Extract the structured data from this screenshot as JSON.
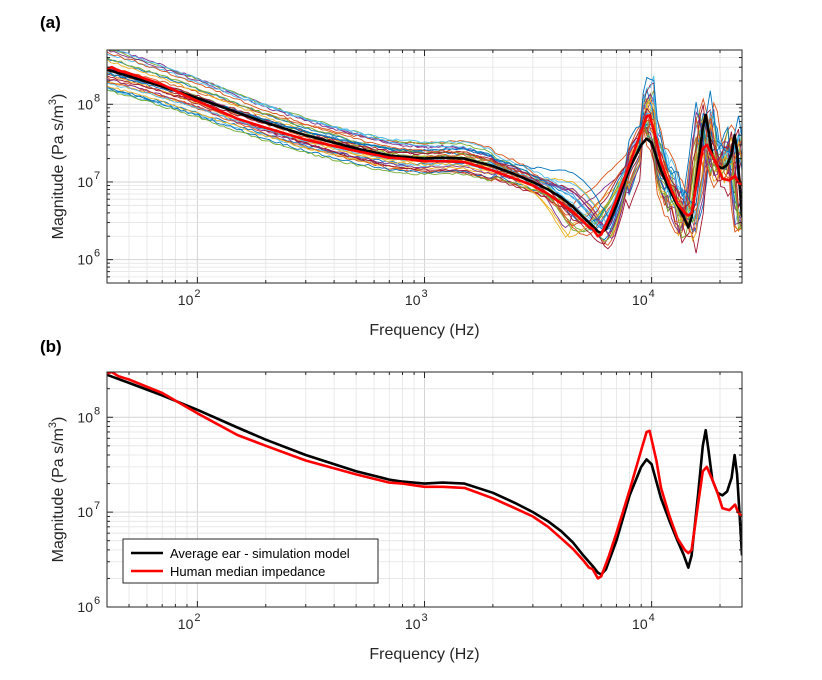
{
  "chart_data": [
    {
      "panel": "(a)",
      "type": "line",
      "xscale": "log",
      "yscale": "log",
      "xlabel": "Frequency (Hz)",
      "ylabel": "Magnitude (Pa s/m3)",
      "ylabel_base": "Magnitude (Pa s/m",
      "ylabel_sup": "3",
      "ylabel_tail": ")",
      "xlim": [
        40,
        25000
      ],
      "ylim": [
        500000,
        500000000
      ],
      "x_ticks": [
        {
          "value": 100,
          "base": "10",
          "exp": "2"
        },
        {
          "value": 1000,
          "base": "10",
          "exp": "3"
        },
        {
          "value": 10000,
          "base": "10",
          "exp": "4"
        }
      ],
      "y_ticks": [
        {
          "value": 1000000,
          "base": "10",
          "exp": "6"
        },
        {
          "value": 10000000,
          "base": "10",
          "exp": "7"
        },
        {
          "value": 100000000,
          "base": "10",
          "exp": "8"
        }
      ],
      "grid": true,
      "individual_ears": {
        "count": 30,
        "colors": [
          "#0072BD",
          "#D95319",
          "#EDB120",
          "#7E2F8E",
          "#77AC30",
          "#4DBEEE",
          "#A2142F"
        ]
      },
      "series": [
        {
          "name": "Average ear - simulation model",
          "color": "#000000",
          "x": [
            40,
            50,
            70,
            100,
            150,
            200,
            300,
            500,
            700,
            800,
            1000,
            1200,
            1500,
            2000,
            2500,
            3000,
            3500,
            4000,
            4500,
            5000,
            5500,
            5800,
            6000,
            6300,
            7000,
            8000,
            9000,
            9500,
            10000,
            10500,
            11000,
            12000,
            13000,
            13800,
            14500,
            15000,
            16000,
            16800,
            17300,
            17800,
            18500,
            19500,
            20500,
            21500,
            22500,
            23200,
            23800,
            24500,
            25000
          ],
          "values": [
            280000000,
            230000000,
            170000000,
            120000000,
            78000000,
            58000000,
            40000000,
            27000000,
            22000000,
            21000000,
            20000000,
            20500000,
            20000000,
            16000000,
            12500000,
            10000000,
            8000000,
            6300000,
            4800000,
            3500000,
            2700000,
            2300000,
            2200000,
            2500000,
            5000000,
            15000000,
            30000000,
            36000000,
            32000000,
            21000000,
            14000000,
            8000000,
            5000000,
            3600000,
            2600000,
            3500000,
            15000000,
            50000000,
            73000000,
            45000000,
            22000000,
            16000000,
            15000000,
            16500000,
            23000000,
            40000000,
            25000000,
            8000000,
            3500000
          ]
        },
        {
          "name": "Human median impedance",
          "color": "#FF0000",
          "x": [
            40,
            42,
            45,
            50,
            70,
            100,
            150,
            200,
            300,
            500,
            700,
            800,
            1000,
            1200,
            1500,
            2000,
            2500,
            3000,
            3500,
            4000,
            4500,
            5000,
            5300,
            5500,
            5800,
            6000,
            6500,
            7000,
            8000,
            9000,
            9500,
            9800,
            10500,
            11000,
            12000,
            13000,
            14000,
            14500,
            15000,
            16000,
            16800,
            17500,
            18500,
            19500,
            20500,
            22000,
            23300,
            24000,
            25000
          ],
          "values": [
            290000000,
            300000000,
            270000000,
            250000000,
            180000000,
            110000000,
            65000000,
            50000000,
            35000000,
            25000000,
            20500000,
            20000000,
            18500000,
            18500000,
            18000000,
            14000000,
            11000000,
            9000000,
            7000000,
            5300000,
            4100000,
            3100000,
            2600000,
            2500000,
            2000000,
            2100000,
            3500000,
            6000000,
            17000000,
            45000000,
            70000000,
            72000000,
            35000000,
            18000000,
            9000000,
            5300000,
            4000000,
            3700000,
            4000000,
            12000000,
            27000000,
            30000000,
            22000000,
            16000000,
            11000000,
            10500000,
            12000000,
            10000000,
            9000000
          ]
        }
      ]
    },
    {
      "panel": "(b)",
      "type": "line",
      "xscale": "log",
      "yscale": "log",
      "xlabel": "Frequency (Hz)",
      "ylabel": "Magnitude (Pa s/m3)",
      "ylabel_base": "Magnitude (Pa s/m",
      "ylabel_sup": "3",
      "ylabel_tail": ")",
      "xlim": [
        40,
        25000
      ],
      "ylim": [
        1000000,
        300000000
      ],
      "x_ticks": [
        {
          "value": 100,
          "base": "10",
          "exp": "2"
        },
        {
          "value": 1000,
          "base": "10",
          "exp": "3"
        },
        {
          "value": 10000,
          "base": "10",
          "exp": "4"
        }
      ],
      "y_ticks": [
        {
          "value": 1000000,
          "base": "10",
          "exp": "6"
        },
        {
          "value": 10000000,
          "base": "10",
          "exp": "7"
        },
        {
          "value": 100000000,
          "base": "10",
          "exp": "8"
        }
      ],
      "grid": true,
      "legend": {
        "position": "bottom-left",
        "entries": [
          {
            "label": "Average ear - simulation model",
            "color": "#000000"
          },
          {
            "label": "Human median impedance",
            "color": "#FF0000"
          }
        ]
      },
      "series": [
        {
          "name": "Average ear - simulation model",
          "color": "#000000",
          "x": [
            40,
            50,
            70,
            100,
            150,
            200,
            300,
            500,
            700,
            800,
            1000,
            1200,
            1500,
            2000,
            2500,
            3000,
            3500,
            4000,
            4500,
            5000,
            5500,
            5800,
            6000,
            6300,
            7000,
            8000,
            9000,
            9500,
            10000,
            10500,
            11000,
            12000,
            13000,
            13800,
            14500,
            15000,
            16000,
            16800,
            17300,
            17800,
            18500,
            19500,
            20500,
            21500,
            22500,
            23200,
            23800,
            24500,
            25000
          ],
          "values": [
            280000000,
            230000000,
            170000000,
            120000000,
            78000000,
            58000000,
            40000000,
            27000000,
            22000000,
            21000000,
            20000000,
            20500000,
            20000000,
            16000000,
            12500000,
            10000000,
            8000000,
            6300000,
            4800000,
            3500000,
            2700000,
            2300000,
            2200000,
            2500000,
            5000000,
            15000000,
            30000000,
            36000000,
            32000000,
            21000000,
            14000000,
            8000000,
            5000000,
            3600000,
            2600000,
            3500000,
            15000000,
            50000000,
            73000000,
            45000000,
            22000000,
            16000000,
            15000000,
            16500000,
            23000000,
            40000000,
            25000000,
            8000000,
            3500000
          ]
        },
        {
          "name": "Human median impedance",
          "color": "#FF0000",
          "x": [
            40,
            42,
            45,
            50,
            70,
            100,
            150,
            200,
            300,
            500,
            700,
            800,
            1000,
            1200,
            1500,
            2000,
            2500,
            3000,
            3500,
            4000,
            4500,
            5000,
            5300,
            5500,
            5800,
            6000,
            6500,
            7000,
            8000,
            9000,
            9500,
            9800,
            10500,
            11000,
            12000,
            13000,
            14000,
            14500,
            15000,
            16000,
            16800,
            17500,
            18500,
            19500,
            20500,
            22000,
            23300,
            24000,
            25000
          ],
          "values": [
            290000000,
            300000000,
            270000000,
            250000000,
            180000000,
            110000000,
            65000000,
            50000000,
            35000000,
            25000000,
            20500000,
            20000000,
            18500000,
            18500000,
            18000000,
            14000000,
            11000000,
            9000000,
            7000000,
            5300000,
            4100000,
            3100000,
            2600000,
            2500000,
            2000000,
            2100000,
            3500000,
            6000000,
            17000000,
            45000000,
            70000000,
            72000000,
            35000000,
            18000000,
            9000000,
            5300000,
            4000000,
            3700000,
            4000000,
            12000000,
            27000000,
            30000000,
            22000000,
            16000000,
            11000000,
            10500000,
            12000000,
            10000000,
            9000000
          ]
        }
      ]
    }
  ]
}
